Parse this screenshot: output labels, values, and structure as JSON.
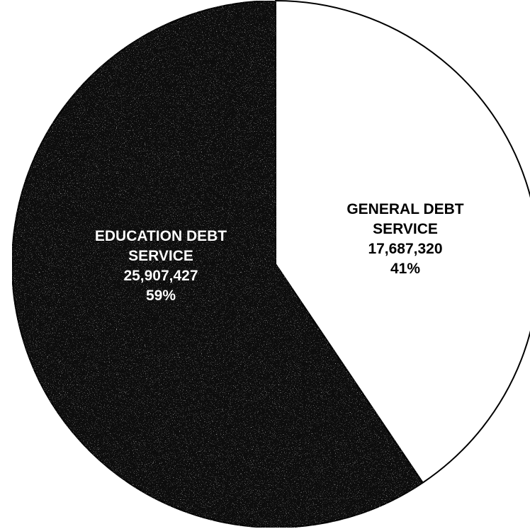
{
  "chart_data": {
    "type": "pie",
    "slices": [
      {
        "label_lines": [
          "GENERAL DEBT",
          "SERVICE"
        ],
        "value": 17687320,
        "value_text": "17,687,320",
        "percent": 41,
        "percent_text": "41%",
        "color": "#ffffff",
        "label_color": "#000000"
      },
      {
        "label_lines": [
          "EDUCATION DEBT",
          "SERVICE"
        ],
        "value": 25907427,
        "value_text": "25,907,427",
        "percent": 59,
        "percent_text": "59%",
        "color": "#111111",
        "label_color": "#ffffff"
      }
    ],
    "start_angle_deg": 0,
    "direction": "clockwise"
  }
}
